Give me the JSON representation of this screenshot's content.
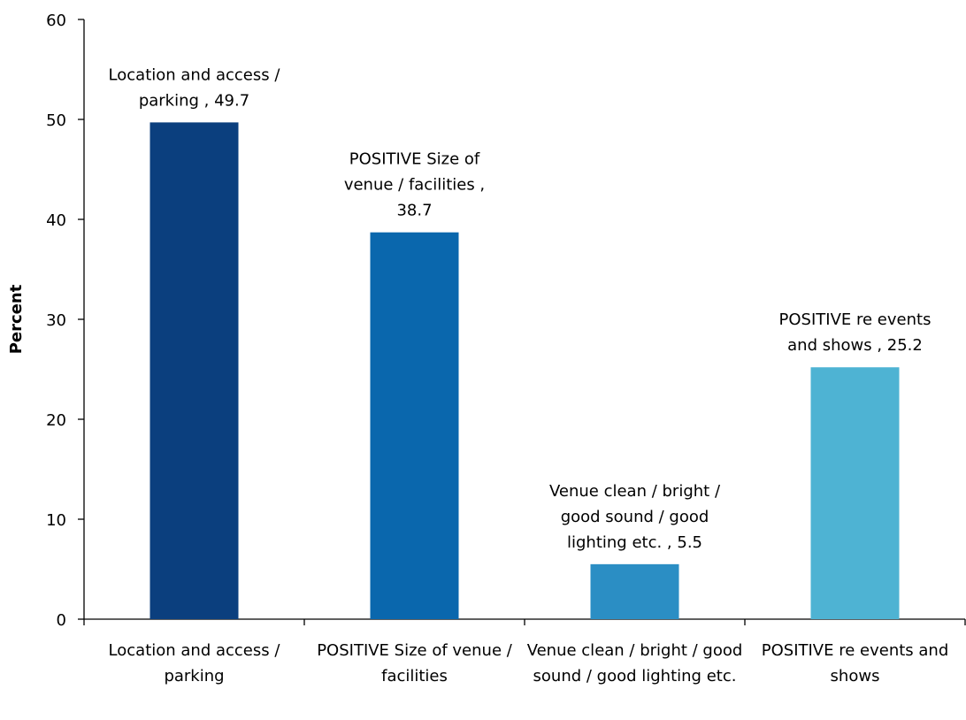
{
  "chart_data": {
    "type": "bar",
    "y_label": "Percent",
    "categories": [
      "Location and access / parking",
      "POSITIVE Size of venue / facilities",
      "Venue clean / bright / good sound / good lighting etc.",
      "POSITIVE re events and shows"
    ],
    "values": [
      49.7,
      38.7,
      5.5,
      25.2
    ],
    "value_labels": [
      "Location and access / parking , 49.7",
      "POSITIVE Size of venue / facilities , 38.7",
      "Venue clean / bright / good sound / good lighting etc. , 5.5",
      "POSITIVE re events and shows , 25.2"
    ],
    "colors": [
      "#0b3f7e",
      "#0a67ad",
      "#2b8ec4",
      "#4eb3d3"
    ],
    "ylim": [
      0,
      60
    ],
    "yticks": [
      0,
      10,
      20,
      30,
      40,
      50,
      60
    ],
    "grid": false
  }
}
